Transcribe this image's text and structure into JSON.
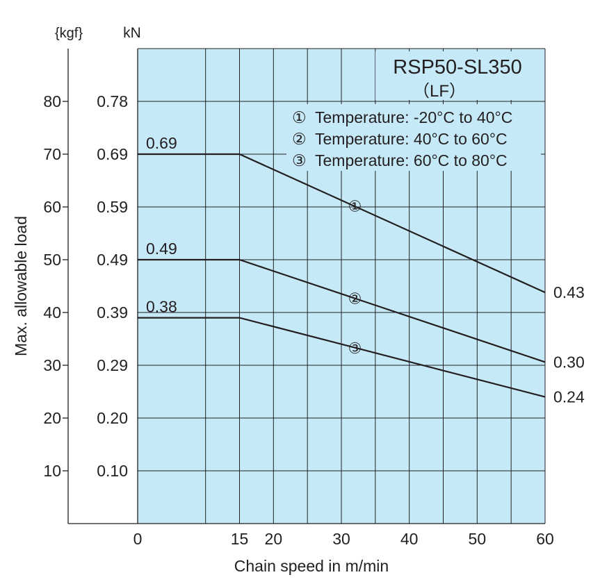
{
  "chart_data": {
    "type": "line",
    "title": "RSP50-SL350",
    "subtitle": "（LF）",
    "xlabel": "Chain speed in m/min",
    "ylabel": "Max. allowable load",
    "y_unit_kgf": "{kgf}",
    "y_unit_kn": "kN",
    "xlim": [
      0,
      60
    ],
    "ylim_kgf": [
      0,
      90
    ],
    "x_ticks": [
      {
        "value": 0,
        "label": "0"
      },
      {
        "value": 15,
        "label": "15"
      },
      {
        "value": 20,
        "label": "20"
      },
      {
        "value": 30,
        "label": "30"
      },
      {
        "value": 40,
        "label": "40"
      },
      {
        "value": 50,
        "label": "50"
      },
      {
        "value": 60,
        "label": "60"
      }
    ],
    "x_gridlines": [
      0,
      10,
      15,
      20,
      25,
      30,
      35,
      40,
      45,
      50,
      55,
      60
    ],
    "y_ticks": [
      {
        "value": 80,
        "kgf": "80",
        "kn": "0.78"
      },
      {
        "value": 70,
        "kgf": "70",
        "kn": "0.69"
      },
      {
        "value": 60,
        "kgf": "60",
        "kn": "0.59"
      },
      {
        "value": 50,
        "kgf": "50",
        "kn": "0.49"
      },
      {
        "value": 40,
        "kgf": "40",
        "kn": "0.39"
      },
      {
        "value": 30,
        "kgf": "30",
        "kn": "0.29"
      },
      {
        "value": 20,
        "kgf": "20",
        "kn": "0.20"
      },
      {
        "value": 10,
        "kgf": "10",
        "kn": "0.10"
      }
    ],
    "series": [
      {
        "marker": "①",
        "x": [
          0,
          15,
          60
        ],
        "y": [
          70,
          70,
          43.8
        ],
        "start_label": "0.69",
        "end_label": "0.43",
        "marker_at": [
          32,
          60.2
        ]
      },
      {
        "marker": "②",
        "x": [
          0,
          15,
          60
        ],
        "y": [
          50,
          50,
          30.6
        ],
        "start_label": "0.49",
        "end_label": "0.30",
        "marker_at": [
          32,
          42.7
        ]
      },
      {
        "marker": "③",
        "x": [
          0,
          15,
          60
        ],
        "y": [
          39,
          39,
          24.0
        ],
        "start_label": "0.38",
        "end_label": "0.24",
        "marker_at": [
          32,
          33.3
        ]
      }
    ],
    "legend": [
      {
        "marker": "①",
        "text": "Temperature: -20°C to 40°C"
      },
      {
        "marker": "②",
        "text": "Temperature: 40°C to 60°C"
      },
      {
        "marker": "③",
        "text": "Temperature: 60°C to 80°C"
      }
    ],
    "legend_position": "top-right",
    "grid": true,
    "colors": {
      "plot_background": "#c6e9f8",
      "line": "#231f20"
    }
  }
}
